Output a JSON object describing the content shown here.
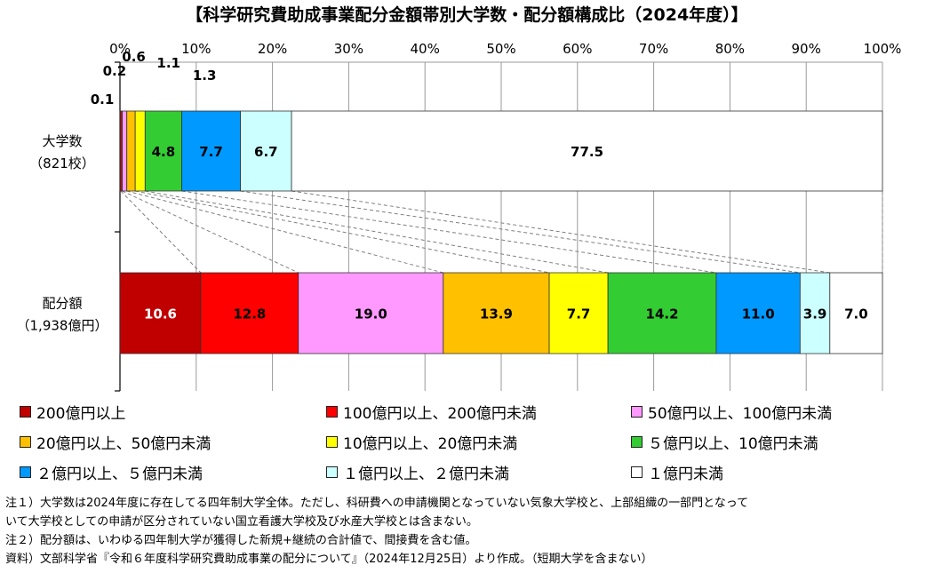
{
  "title": "【科学研究費助成事業配分金額帯別大学数・配分額構成比（2024年度）】",
  "chart_data": {
    "type": "bar",
    "orientation": "horizontal",
    "stacked": "percent",
    "xlim": [
      0,
      100
    ],
    "x_ticks": [
      "0%",
      "10%",
      "20%",
      "30%",
      "40%",
      "50%",
      "60%",
      "70%",
      "80%",
      "90%",
      "100%"
    ],
    "grid": true,
    "categories": [
      {
        "line1": "大学数",
        "line2": "（821校）"
      },
      {
        "line1": "配分額",
        "line2": "（1,938億円）"
      }
    ],
    "series": [
      {
        "name": "200億円以上",
        "color": "#c00000",
        "label_color": "#ffffff",
        "values": [
          0.1,
          10.6
        ]
      },
      {
        "name": "100億円以上、200億円未満",
        "color": "#ff0000",
        "label_color": "#000000",
        "values": [
          0.2,
          12.8
        ]
      },
      {
        "name": "50億円以上、100億円未満",
        "color": "#ff99ff",
        "label_color": "#000000",
        "values": [
          0.6,
          19.0
        ]
      },
      {
        "name": "20億円以上、50億円未満",
        "color": "#ffc000",
        "label_color": "#000000",
        "values": [
          1.1,
          13.9
        ]
      },
      {
        "name": "10億円以上、20億円未満",
        "color": "#ffff00",
        "label_color": "#000000",
        "values": [
          1.3,
          7.7
        ]
      },
      {
        "name": "５億円以上、10億円未満",
        "color": "#33cc33",
        "label_color": "#000000",
        "values": [
          4.8,
          14.2
        ]
      },
      {
        "name": "２億円以上、５億円未満",
        "color": "#0099ff",
        "label_color": "#000000",
        "values": [
          7.7,
          11.0
        ]
      },
      {
        "name": "１億円以上、２億円未満",
        "color": "#ccffff",
        "label_color": "#000000",
        "values": [
          6.7,
          3.9
        ]
      },
      {
        "name": "１億円未満",
        "color": "#ffffff",
        "label_color": "#000000",
        "values": [
          77.5,
          7.0
        ]
      }
    ]
  },
  "notes": [
    "注１）大学数は2024年度に存在してる四年制大学全体。ただし、科研費への申請機関となっていない気象大学校と、上部組織の一部門となって",
    "いて大学校としての申請が区分されていない国立看護大学校及び水産大学校とは含まない。",
    "注２）配分額は、いわゆる四年制大学が獲得した新規+継続の合計値で、間接費を含む値。",
    "資料）文部科学省『令和６年度科学研究費助成事業の配分について』（2024年12月25日）より作成。（短期大学を含まない）"
  ]
}
